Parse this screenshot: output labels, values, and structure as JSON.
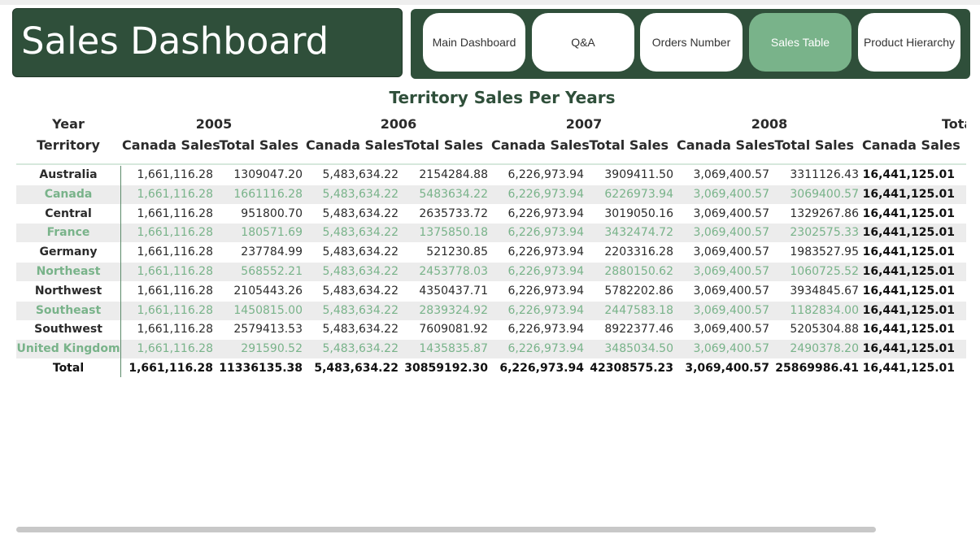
{
  "header": {
    "title": "Sales Dashboard"
  },
  "nav": [
    {
      "label": "Main Dashboard",
      "active": false
    },
    {
      "label": "Q&A",
      "active": false
    },
    {
      "label": "Orders Number",
      "active": false
    },
    {
      "label": "Sales Table",
      "active": true
    },
    {
      "label": "Product Hierarchy",
      "active": false
    }
  ],
  "table": {
    "title": "Territory Sales Per Years",
    "row_header_year": "Year",
    "row_header_territory": "Territory",
    "years": [
      "2005",
      "2006",
      "2007",
      "2008",
      "Total"
    ],
    "measures": [
      "Canada Sales",
      "Total Sales"
    ],
    "rows": [
      {
        "territory": "Australia",
        "values": [
          "1,661,116.28",
          "1309047.20",
          "5,483,634.22",
          "2154284.88",
          "6,226,973.94",
          "3909411.50",
          "3,069,400.57",
          "3311126.43",
          "16,441,125.01"
        ]
      },
      {
        "territory": "Canada",
        "values": [
          "1,661,116.28",
          "1661116.28",
          "5,483,634.22",
          "5483634.22",
          "6,226,973.94",
          "6226973.94",
          "3,069,400.57",
          "3069400.57",
          "16,441,125.01"
        ]
      },
      {
        "territory": "Central",
        "values": [
          "1,661,116.28",
          "951800.70",
          "5,483,634.22",
          "2635733.72",
          "6,226,973.94",
          "3019050.16",
          "3,069,400.57",
          "1329267.86",
          "16,441,125.01"
        ]
      },
      {
        "territory": "France",
        "values": [
          "1,661,116.28",
          "180571.69",
          "5,483,634.22",
          "1375850.18",
          "6,226,973.94",
          "3432474.72",
          "3,069,400.57",
          "2302575.33",
          "16,441,125.01"
        ]
      },
      {
        "territory": "Germany",
        "values": [
          "1,661,116.28",
          "237784.99",
          "5,483,634.22",
          "521230.85",
          "6,226,973.94",
          "2203316.28",
          "3,069,400.57",
          "1983527.95",
          "16,441,125.01"
        ]
      },
      {
        "territory": "Northeast",
        "values": [
          "1,661,116.28",
          "568552.21",
          "5,483,634.22",
          "2453778.03",
          "6,226,973.94",
          "2880150.62",
          "3,069,400.57",
          "1060725.52",
          "16,441,125.01"
        ]
      },
      {
        "territory": "Northwest",
        "values": [
          "1,661,116.28",
          "2105443.26",
          "5,483,634.22",
          "4350437.71",
          "6,226,973.94",
          "5782202.86",
          "3,069,400.57",
          "3934845.67",
          "16,441,125.01"
        ]
      },
      {
        "territory": "Southeast",
        "values": [
          "1,661,116.28",
          "1450815.00",
          "5,483,634.22",
          "2839324.92",
          "6,226,973.94",
          "2447583.18",
          "3,069,400.57",
          "1182834.00",
          "16,441,125.01"
        ]
      },
      {
        "territory": "Southwest",
        "values": [
          "1,661,116.28",
          "2579413.53",
          "5,483,634.22",
          "7609081.92",
          "6,226,973.94",
          "8922377.46",
          "3,069,400.57",
          "5205304.88",
          "16,441,125.01"
        ]
      },
      {
        "territory": "United Kingdom",
        "values": [
          "1,661,116.28",
          "291590.52",
          "5,483,634.22",
          "1435835.87",
          "6,226,973.94",
          "3485034.50",
          "3,069,400.57",
          "2490378.20",
          "16,441,125.01"
        ]
      }
    ],
    "total_row": {
      "territory": "Total",
      "values": [
        "1,661,116.28",
        "11336135.38",
        "5,483,634.22",
        "30859192.30",
        "6,226,973.94",
        "42308575.23",
        "3,069,400.57",
        "25869986.41",
        "16,441,125.01"
      ]
    }
  }
}
